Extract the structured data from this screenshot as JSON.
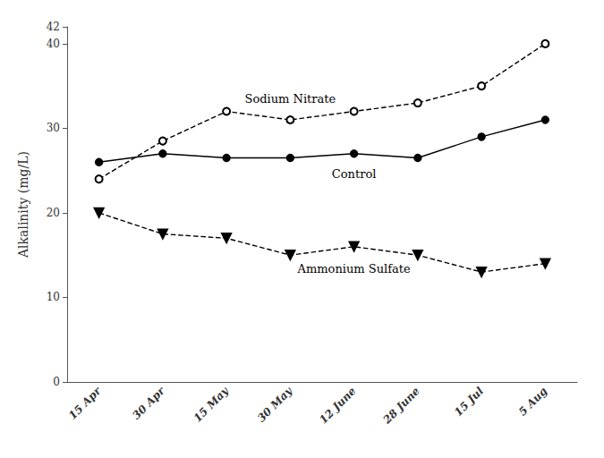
{
  "chart_data": {
    "type": "line",
    "categories": [
      "15 Apr",
      "30 Apr",
      "15 May",
      "30 May",
      "12 June",
      "28 June",
      "15 Jul",
      "5 Aug"
    ],
    "series": [
      {
        "name": "Sodium Nitrate",
        "color": "#000000",
        "marker": "open_circle",
        "line_style": "dashed",
        "values": [
          24,
          28.5,
          32,
          31,
          32,
          33,
          35,
          40
        ]
      },
      {
        "name": "Control",
        "color": "#000000",
        "marker": "circle",
        "line_style": "solid",
        "values": [
          26,
          27,
          26.5,
          26.5,
          27,
          26.5,
          29,
          31
        ]
      },
      {
        "name": "Ammonium Sulfate",
        "color": "#000000",
        "marker": "triangle_down",
        "line_style": "dashed",
        "values": [
          20,
          17.5,
          17,
          15,
          16,
          15,
          13,
          14
        ]
      }
    ],
    "ylabel": "Alkalinity (mg/L)",
    "ylim": [
      0,
      42
    ],
    "yticks": [
      0,
      10,
      20,
      30,
      40
    ],
    "grid": false
  }
}
